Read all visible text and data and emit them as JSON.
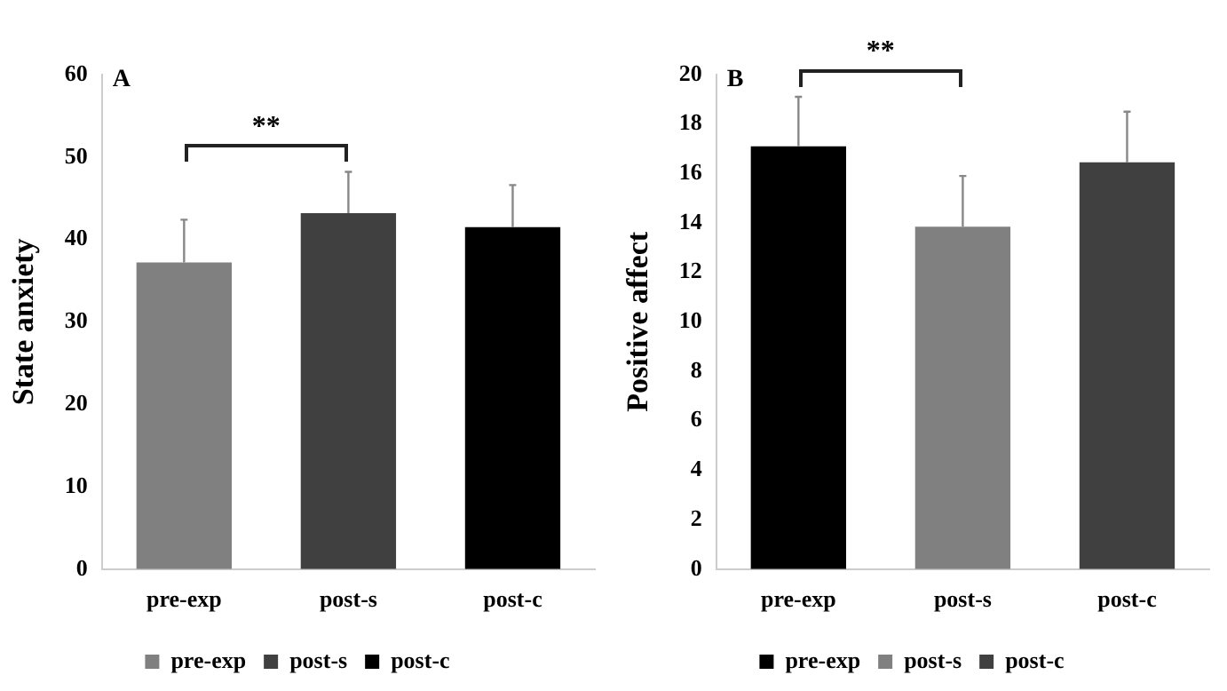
{
  "chart_data": [
    {
      "type": "bar",
      "title": "A",
      "ylabel": "State anxiety",
      "categories": [
        "pre-exp",
        "post-s",
        "post-c"
      ],
      "series": [
        {
          "name": "pre-exp",
          "color": "#808080",
          "values": [
            37.2,
            null,
            null
          ],
          "errors": [
            [
              37.2,
              42.4
            ],
            null,
            null
          ]
        },
        {
          "name": "post-s",
          "color": "#404040",
          "values": [
            null,
            43.2,
            null
          ],
          "errors": [
            null,
            [
              43.2,
              48.2
            ],
            null
          ]
        },
        {
          "name": "post-c",
          "color": "#000000",
          "values": [
            null,
            null,
            41.5
          ],
          "errors": [
            null,
            null,
            [
              41.5,
              46.6
            ]
          ]
        }
      ],
      "ylim": [
        0,
        60
      ],
      "yticks": [
        0,
        10,
        20,
        30,
        40,
        50,
        60
      ],
      "grid": false,
      "legend": "bottom",
      "annotations": [
        "**"
      ]
    },
    {
      "type": "bar",
      "title": "B",
      "ylabel": "Positive affect",
      "categories": [
        "pre-exp",
        "post-s",
        "post-c"
      ],
      "series": [
        {
          "name": "pre-exp",
          "color": "#000000",
          "values": [
            17.1,
            null,
            null
          ],
          "errors": [
            [
              17.1,
              19.1
            ],
            null,
            null
          ]
        },
        {
          "name": "post-s",
          "color": "#808080",
          "values": [
            null,
            13.85,
            null
          ],
          "errors": [
            null,
            [
              13.85,
              15.9
            ],
            null
          ]
        },
        {
          "name": "post-c",
          "color": "#404040",
          "values": [
            null,
            null,
            16.45
          ],
          "errors": [
            null,
            null,
            [
              16.45,
              18.5
            ]
          ]
        }
      ],
      "ylim": [
        0,
        20
      ],
      "yticks": [
        0,
        2,
        4,
        6,
        8,
        10,
        12,
        14,
        16,
        18,
        20
      ],
      "grid": false,
      "legend": "bottom",
      "annotations": [
        "**"
      ]
    }
  ]
}
